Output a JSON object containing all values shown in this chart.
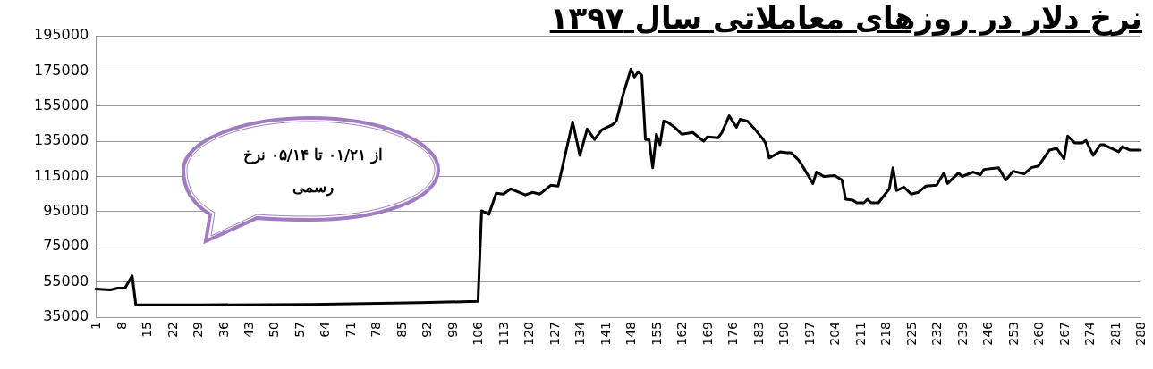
{
  "chart_data": {
    "type": "line",
    "title": "نرخ دلار در روزهای معاملاتی سال ۱۳۹۷",
    "annotations": [
      "از ۰۱/۲۱ تا ۰۵/۱۴ نرخ رسمی"
    ],
    "x": [
      1,
      5,
      7,
      9,
      11,
      12,
      30,
      60,
      90,
      106,
      107,
      109,
      111,
      113,
      115,
      119,
      121,
      123,
      126,
      128,
      132,
      134,
      136,
      138,
      140,
      143,
      144,
      146,
      148,
      149,
      150,
      151,
      152,
      153,
      154,
      155,
      156,
      157,
      158,
      160,
      162,
      165,
      168,
      169,
      172,
      173,
      175,
      177,
      178,
      180,
      182,
      184,
      185,
      186,
      189,
      191,
      192,
      194,
      195,
      198,
      199,
      201,
      204,
      206,
      207,
      209,
      210,
      212,
      213,
      214,
      216,
      219,
      220,
      221,
      223,
      225,
      227,
      229,
      232,
      234,
      235,
      238,
      239,
      242,
      244,
      245,
      249,
      251,
      253,
      256,
      258,
      260,
      263,
      265,
      267,
      268,
      270,
      272,
      273,
      275,
      277,
      278,
      282,
      283,
      285,
      288
    ],
    "series": [
      {
        "color": "#000000",
        "values": [
          51000,
          50500,
          51500,
          51500,
          58500,
          42000,
          42000,
          42200,
          43200,
          44000,
          95500,
          93500,
          105500,
          105000,
          108000,
          104500,
          106000,
          105000,
          110000,
          109500,
          146000,
          127000,
          142000,
          136000,
          141500,
          144500,
          146500,
          162500,
          176000,
          171500,
          174500,
          172500,
          136000,
          136000,
          120000,
          139000,
          133000,
          146500,
          146000,
          143000,
          139000,
          140000,
          135000,
          137500,
          137000,
          140000,
          149500,
          143000,
          147500,
          146500,
          142000,
          137000,
          134000,
          125500,
          129000,
          128500,
          128500,
          124500,
          121500,
          111000,
          117500,
          115000,
          115500,
          113000,
          102000,
          101500,
          100000,
          100000,
          102000,
          100000,
          100000,
          108000,
          120000,
          107000,
          109000,
          105000,
          106000,
          109500,
          110000,
          117000,
          111000,
          117000,
          115000,
          117500,
          116000,
          119000,
          120000,
          113000,
          118000,
          116500,
          120000,
          121000,
          130000,
          131000,
          125000,
          138000,
          134000,
          134000,
          135500,
          127000,
          133000,
          133000,
          129000,
          132000,
          130000,
          130000
        ]
      }
    ],
    "xlim": [
      1,
      288
    ],
    "xticks": [
      1,
      8,
      15,
      22,
      29,
      36,
      43,
      50,
      57,
      64,
      71,
      78,
      85,
      92,
      99,
      106,
      113,
      120,
      127,
      134,
      141,
      148,
      155,
      162,
      169,
      176,
      183,
      190,
      197,
      204,
      211,
      218,
      225,
      232,
      239,
      246,
      253,
      260,
      267,
      274,
      281,
      288
    ],
    "ylim": [
      35000,
      195000
    ],
    "yticks": [
      35000,
      55000,
      75000,
      95000,
      115000,
      135000,
      155000,
      175000,
      195000
    ],
    "grid": "y",
    "legend": false,
    "marker": "none",
    "line_style": "solid"
  }
}
